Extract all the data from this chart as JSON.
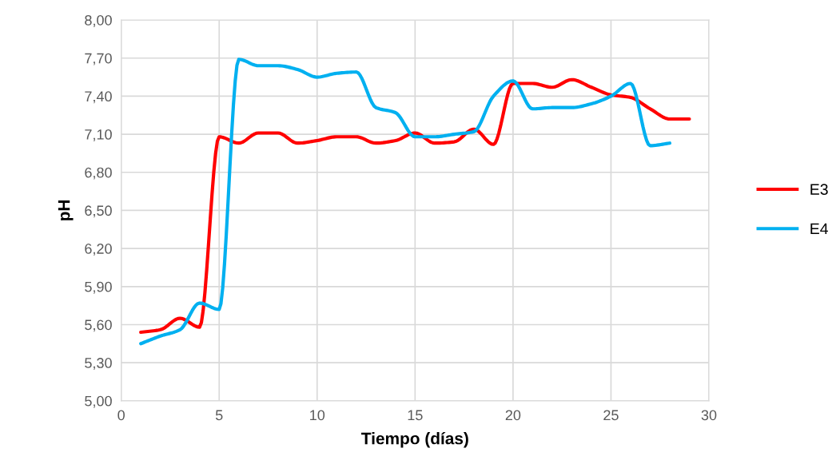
{
  "chart_data": {
    "type": "line",
    "xlabel": "Tiempo (días)",
    "ylabel": "pH",
    "xlim": [
      0,
      30
    ],
    "xticks": [
      0,
      5,
      10,
      15,
      20,
      25,
      30
    ],
    "ylim": [
      5.0,
      8.0
    ],
    "yticks": [
      {
        "value": 5.0,
        "label": "5,00"
      },
      {
        "value": 5.3,
        "label": "5,30"
      },
      {
        "value": 5.6,
        "label": "5,60"
      },
      {
        "value": 5.9,
        "label": "5,90"
      },
      {
        "value": 6.2,
        "label": "6,20"
      },
      {
        "value": 6.5,
        "label": "6,50"
      },
      {
        "value": 6.8,
        "label": "6,80"
      },
      {
        "value": 7.1,
        "label": "7,10"
      },
      {
        "value": 7.4,
        "label": "7,40"
      },
      {
        "value": 7.7,
        "label": "7,70"
      },
      {
        "value": 8.0,
        "label": "8,00"
      }
    ],
    "grid": true,
    "legend": "right",
    "marker": "none",
    "line_style": "solid",
    "series": [
      {
        "name": "E3",
        "color": "#ff0000",
        "x": [
          1,
          2,
          3,
          4,
          5,
          6,
          7,
          8,
          9,
          10,
          11,
          12,
          13,
          14,
          15,
          16,
          17,
          18,
          19,
          20,
          21,
          22,
          23,
          24,
          25,
          26,
          27,
          28,
          29
        ],
        "values": [
          5.54,
          5.56,
          5.65,
          5.58,
          7.08,
          7.03,
          7.11,
          7.11,
          7.03,
          7.05,
          7.08,
          7.08,
          7.03,
          7.05,
          7.11,
          7.03,
          7.04,
          7.14,
          7.02,
          7.5,
          7.5,
          7.47,
          7.53,
          7.47,
          7.41,
          7.39,
          7.3,
          7.22,
          7.22
        ]
      },
      {
        "name": "E4",
        "color": "#00b0f0",
        "x": [
          1,
          2,
          3,
          4,
          5,
          6,
          7,
          8,
          9,
          10,
          11,
          12,
          13,
          14,
          15,
          16,
          17,
          18,
          19,
          20,
          21,
          22,
          23,
          24,
          25,
          26,
          27,
          28
        ],
        "values": [
          5.45,
          5.51,
          5.56,
          5.77,
          5.72,
          7.69,
          7.64,
          7.64,
          7.61,
          7.55,
          7.58,
          7.59,
          7.31,
          7.27,
          7.08,
          7.08,
          7.1,
          7.12,
          7.4,
          7.52,
          7.3,
          7.31,
          7.31,
          7.34,
          7.4,
          7.5,
          7.01,
          7.03
        ]
      }
    ]
  }
}
